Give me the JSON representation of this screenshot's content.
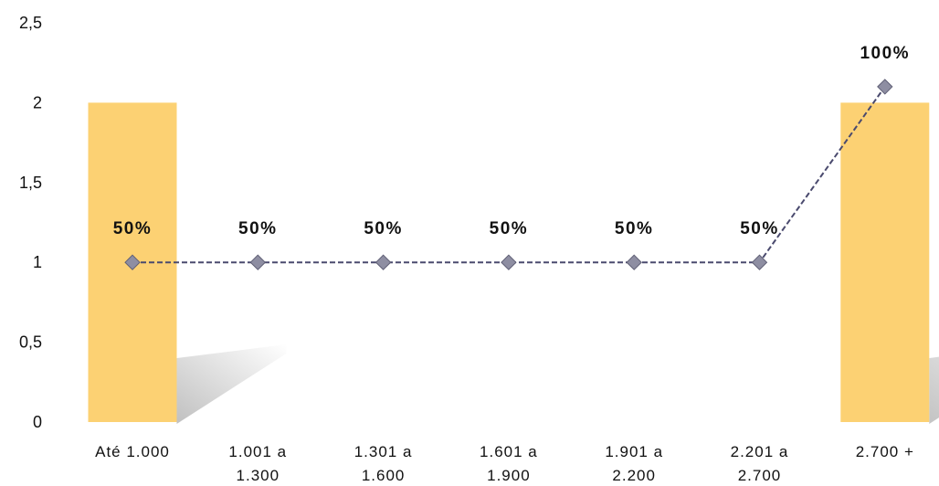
{
  "chart_data": {
    "type": "bar",
    "categories": [
      [
        "Até 1.000"
      ],
      [
        "1.001 a",
        "1.300"
      ],
      [
        "1.301 a",
        "1.600"
      ],
      [
        "1.601 a",
        "1.900"
      ],
      [
        "1.901 a",
        "2.200"
      ],
      [
        "2.201 a",
        "2.700"
      ],
      [
        "2.700 +"
      ]
    ],
    "bar_values": [
      2,
      0,
      0,
      0,
      0,
      0,
      2
    ],
    "line_values": [
      1,
      1,
      1,
      1,
      1,
      1,
      2.1
    ],
    "data_labels": [
      "50%",
      "50%",
      "50%",
      "50%",
      "50%",
      "50%",
      "100%"
    ],
    "y_ticks": [
      "0",
      "0,5",
      "1",
      "1,5",
      "2",
      "2,5"
    ],
    "ylim": [
      0,
      2.5
    ],
    "grid": false,
    "colors": {
      "bar": "#FCD173",
      "line": "#4A4A6E",
      "marker": "#8E8EA2",
      "shadow": "#BDBDBD"
    }
  }
}
